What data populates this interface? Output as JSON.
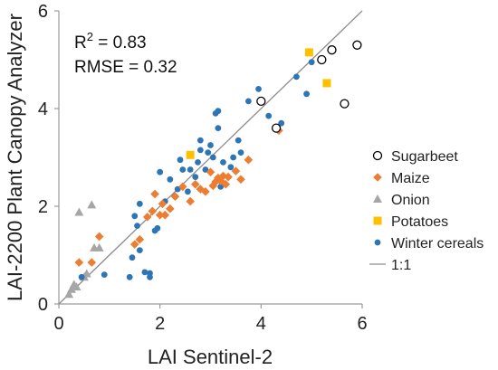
{
  "chart_data": {
    "type": "scatter",
    "xlabel": "LAI Sentinel-2",
    "ylabel": "LAI-2200 Plant Canopy Analyzer",
    "xlim": [
      0,
      6
    ],
    "ylim": [
      0,
      6
    ],
    "xticks": [
      "0",
      "2",
      "4",
      "6"
    ],
    "yticks": [
      "0",
      "2",
      "4",
      "6"
    ],
    "grid": false,
    "legend_position": "right",
    "annotations": {
      "r2_prefix": "R",
      "r2_sup": "2",
      "r2_suffix": " = 0.83",
      "rmse": "RMSE = 0.32"
    },
    "reference_line": {
      "name": "1:1",
      "color": "#8c8c8c"
    },
    "series": [
      {
        "name": "Sugarbeet",
        "marker": "open-circle",
        "color": "#000000",
        "points": [
          [
            4.0,
            4.15
          ],
          [
            4.3,
            3.6
          ],
          [
            5.2,
            5.0
          ],
          [
            5.4,
            5.2
          ],
          [
            5.65,
            4.1
          ],
          [
            5.9,
            5.3
          ]
        ]
      },
      {
        "name": "Maize",
        "marker": "diamond",
        "color": "#ed7d31",
        "points": [
          [
            0.4,
            0.85
          ],
          [
            0.65,
            0.85
          ],
          [
            0.8,
            1.38
          ],
          [
            1.5,
            1.22
          ],
          [
            1.6,
            1.32
          ],
          [
            1.75,
            1.78
          ],
          [
            1.85,
            1.9
          ],
          [
            1.9,
            2.25
          ],
          [
            2.0,
            1.82
          ],
          [
            2.05,
            2.05
          ],
          [
            2.1,
            1.82
          ],
          [
            2.2,
            1.95
          ],
          [
            2.3,
            2.2
          ],
          [
            2.45,
            2.4
          ],
          [
            2.6,
            2.1
          ],
          [
            2.7,
            2.45
          ],
          [
            2.8,
            2.35
          ],
          [
            2.9,
            2.3
          ],
          [
            3.0,
            2.7
          ],
          [
            3.05,
            2.42
          ],
          [
            3.1,
            2.5
          ],
          [
            3.15,
            2.58
          ],
          [
            3.2,
            2.52
          ],
          [
            3.25,
            2.62
          ],
          [
            3.3,
            2.45
          ],
          [
            3.35,
            2.6
          ],
          [
            3.5,
            2.72
          ],
          [
            3.6,
            2.55
          ],
          [
            3.75,
            2.95
          ],
          [
            4.35,
            3.55
          ]
        ]
      },
      {
        "name": "Onion",
        "marker": "triangle",
        "color": "#a6a6a6",
        "points": [
          [
            0.2,
            0.2
          ],
          [
            0.25,
            0.3
          ],
          [
            0.3,
            0.4
          ],
          [
            0.35,
            0.35
          ],
          [
            0.5,
            0.55
          ],
          [
            0.55,
            0.62
          ],
          [
            0.4,
            1.88
          ],
          [
            0.65,
            2.03
          ],
          [
            0.7,
            1.15
          ],
          [
            0.8,
            1.15
          ]
        ]
      },
      {
        "name": "Potatoes",
        "marker": "square",
        "color": "#ffc000",
        "points": [
          [
            2.6,
            3.05
          ],
          [
            4.95,
            5.15
          ],
          [
            5.3,
            4.52
          ]
        ]
      },
      {
        "name": "Winter cereals",
        "marker": "dot",
        "color": "#2e75b6",
        "points": [
          [
            0.45,
            0.55
          ],
          [
            0.9,
            0.6
          ],
          [
            1.4,
            0.55
          ],
          [
            1.45,
            0.95
          ],
          [
            1.5,
            1.8
          ],
          [
            1.55,
            1.6
          ],
          [
            1.6,
            1.1
          ],
          [
            1.6,
            2.05
          ],
          [
            1.7,
            0.65
          ],
          [
            1.8,
            0.55
          ],
          [
            1.8,
            0.63
          ],
          [
            1.9,
            1.5
          ],
          [
            1.95,
            1.55
          ],
          [
            2.0,
            2.7
          ],
          [
            2.1,
            2.1
          ],
          [
            2.2,
            2.55
          ],
          [
            2.3,
            2.2
          ],
          [
            2.35,
            2.35
          ],
          [
            2.4,
            2.95
          ],
          [
            2.45,
            2.75
          ],
          [
            2.55,
            2.3
          ],
          [
            2.6,
            2.75
          ],
          [
            2.7,
            2.6
          ],
          [
            2.75,
            2.9
          ],
          [
            2.8,
            3.15
          ],
          [
            2.8,
            3.35
          ],
          [
            2.9,
            2.75
          ],
          [
            2.95,
            3.1
          ],
          [
            3.0,
            3.25
          ],
          [
            3.05,
            3.0
          ],
          [
            3.1,
            3.9
          ],
          [
            3.15,
            3.95
          ],
          [
            3.15,
            3.6
          ],
          [
            3.2,
            2.4
          ],
          [
            3.25,
            2.9
          ],
          [
            3.4,
            2.8
          ],
          [
            3.45,
            3.0
          ],
          [
            3.55,
            3.35
          ],
          [
            3.6,
            3.1
          ],
          [
            3.75,
            4.15
          ],
          [
            3.95,
            4.4
          ],
          [
            4.15,
            3.85
          ],
          [
            4.4,
            3.7
          ],
          [
            4.7,
            4.65
          ],
          [
            4.9,
            4.3
          ],
          [
            5.0,
            4.95
          ]
        ]
      }
    ]
  }
}
